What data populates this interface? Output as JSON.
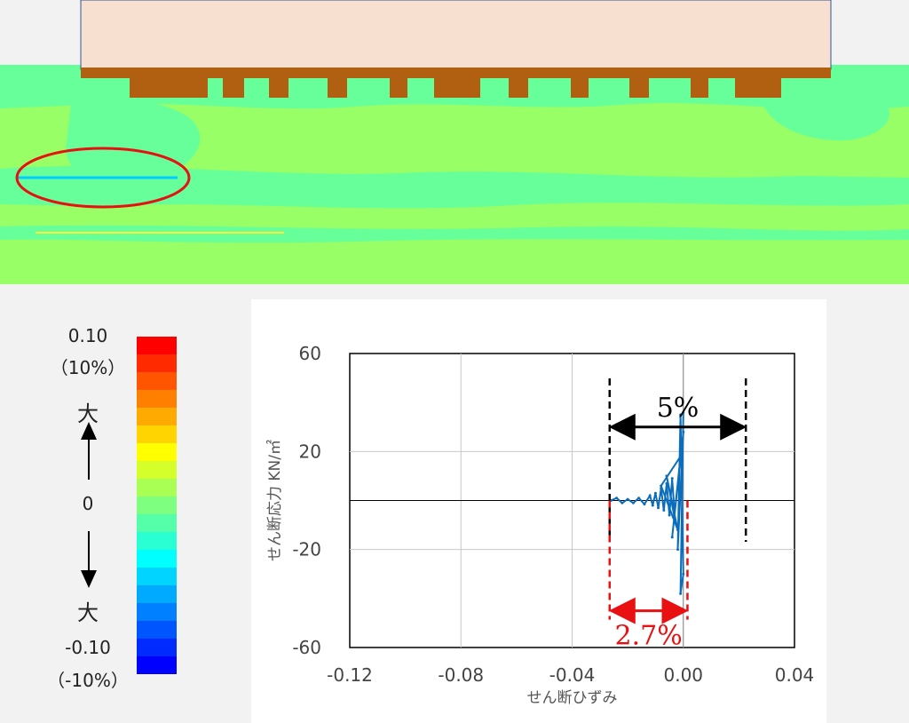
{
  "colors": {
    "building": "#f8e0d0",
    "building_border": "#2f5597",
    "foundation": "#b06010",
    "soil_green": "#99ff66",
    "soil_mint": "#66ff99",
    "highlight_circle": "#e81010",
    "plot_line": "#0a6ebd",
    "dim_black": "#000000",
    "dim_red": "#e81010"
  },
  "legend": {
    "top_value": "0.10",
    "top_percent": "（10%）",
    "top_large": "大",
    "zero": "0",
    "bottom_large": "大",
    "bottom_value": "-0.10",
    "bottom_percent": "（-10%）",
    "scale": [
      "#ff0000",
      "#ff2a00",
      "#ff5500",
      "#ff7f00",
      "#ffaa00",
      "#ffd400",
      "#ffff00",
      "#d4ff2a",
      "#aaff55",
      "#7fff7f",
      "#55ffaa",
      "#2affd4",
      "#00ffff",
      "#00d4ff",
      "#00aaff",
      "#007fff",
      "#0055ff",
      "#002aff",
      "#0000ff"
    ]
  },
  "chart_data": {
    "type": "line",
    "xlabel": "せん断ひずみ",
    "ylabel": "せん断応力 KN/㎡",
    "xlim": [
      -0.12,
      0.04
    ],
    "ylim": [
      -60,
      60
    ],
    "xticks": [
      "-0.12",
      "-0.08",
      "-0.04",
      "0.00",
      "0.04"
    ],
    "yticks": [
      "60",
      "20",
      "-20",
      "-60"
    ],
    "grid": true,
    "series": [
      {
        "points": [
          [
            -0.026,
            0
          ],
          [
            -0.024,
            1
          ],
          [
            -0.022,
            -1
          ],
          [
            -0.02,
            0.5
          ],
          [
            -0.018,
            -1
          ],
          [
            -0.016,
            1
          ],
          [
            -0.014,
            -1.5
          ],
          [
            -0.012,
            2
          ],
          [
            -0.011,
            -2
          ],
          [
            -0.01,
            3
          ],
          [
            -0.009,
            -3
          ],
          [
            -0.008,
            5
          ],
          [
            -0.007,
            -4
          ],
          [
            -0.006,
            7
          ],
          [
            -0.005,
            -6
          ],
          [
            -0.004,
            9
          ],
          [
            -0.003,
            -8
          ],
          [
            -0.006,
            10
          ],
          [
            -0.002,
            -12
          ],
          [
            -0.008,
            6
          ],
          [
            -0.001,
            18
          ],
          [
            -0.004,
            -15
          ],
          [
            0.0,
            28
          ],
          [
            -0.002,
            -20
          ],
          [
            -0.001,
            35
          ],
          [
            0.0,
            -30
          ],
          [
            -0.001,
            -38
          ],
          [
            0.0,
            36
          ]
        ]
      }
    ],
    "annotations": [
      {
        "text": "5%",
        "color": "black",
        "from_x": -0.0265,
        "to_x": 0.0225,
        "y": 30
      },
      {
        "text": "2.7%",
        "color": "red",
        "from_x": -0.0265,
        "to_x": 0.0015,
        "y": -45
      }
    ]
  }
}
